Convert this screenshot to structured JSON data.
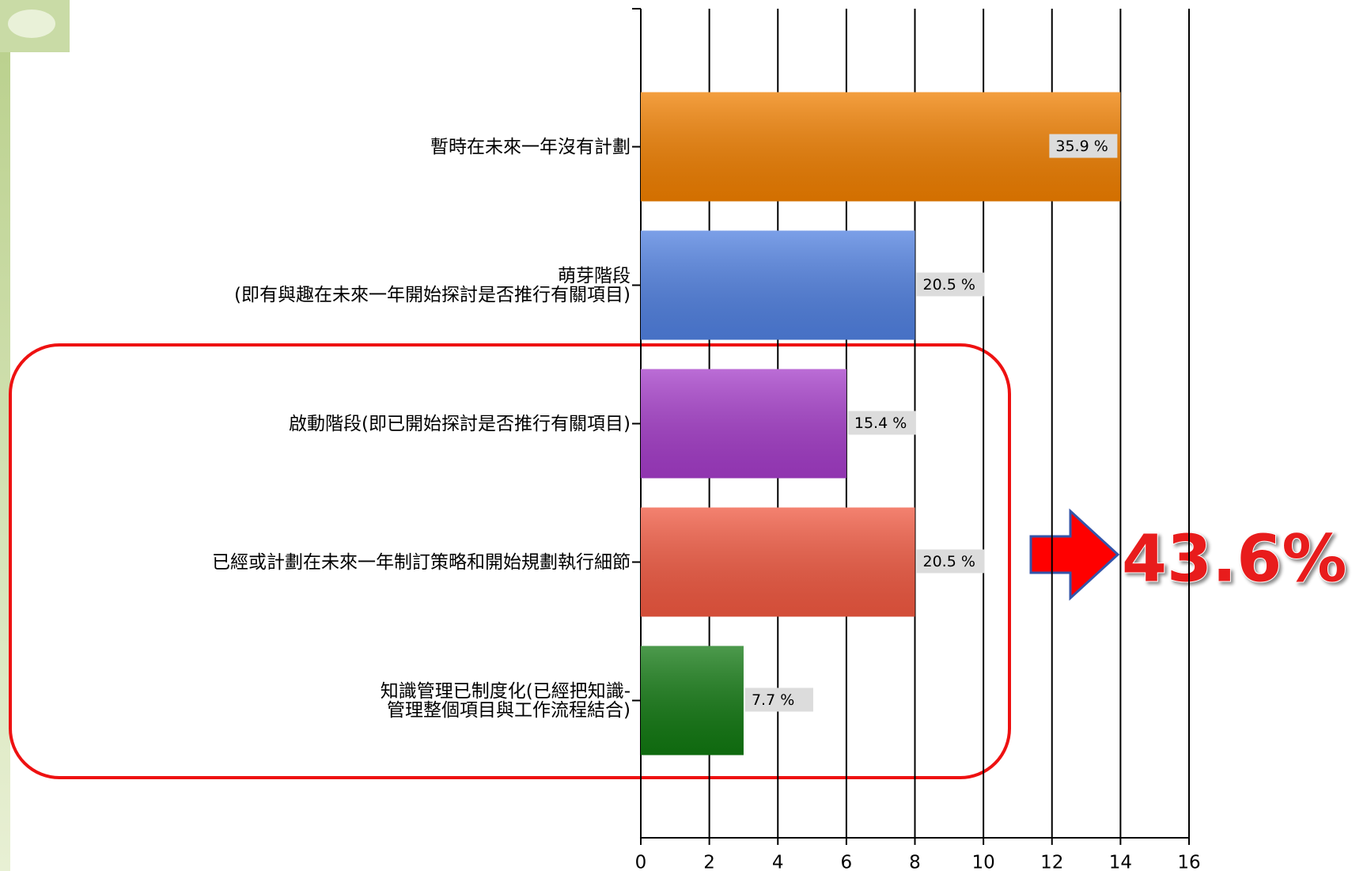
{
  "chart_data": {
    "type": "bar",
    "orientation": "horizontal",
    "categories": [
      "暫時在未來一年沒有計劃",
      "萌芽階段\n(即有與趣在未來一年開始探討是否推行有關項目)",
      "啟動階段(即已開始探討是否推行有關項目)",
      "已經或計劃在未來一年制訂策略和開始規劃執行細節",
      "知識管理已制度化(已經把知識-\n管理整個項目與工作流程結合)"
    ],
    "values": [
      14,
      8,
      6,
      8,
      3
    ],
    "data_labels": [
      "35.9 %",
      "20.5 %",
      "15.4 %",
      "20.5 %",
      "7.7 %"
    ],
    "colors": [
      "#f07f00",
      "#5080e0",
      "#a43cc8",
      "#f05840",
      "#117811"
    ],
    "xlim": [
      0,
      16
    ],
    "xticks": [
      0,
      2,
      4,
      6,
      8,
      10,
      12,
      14,
      16
    ],
    "grid": true,
    "annotation": "43.6%"
  }
}
